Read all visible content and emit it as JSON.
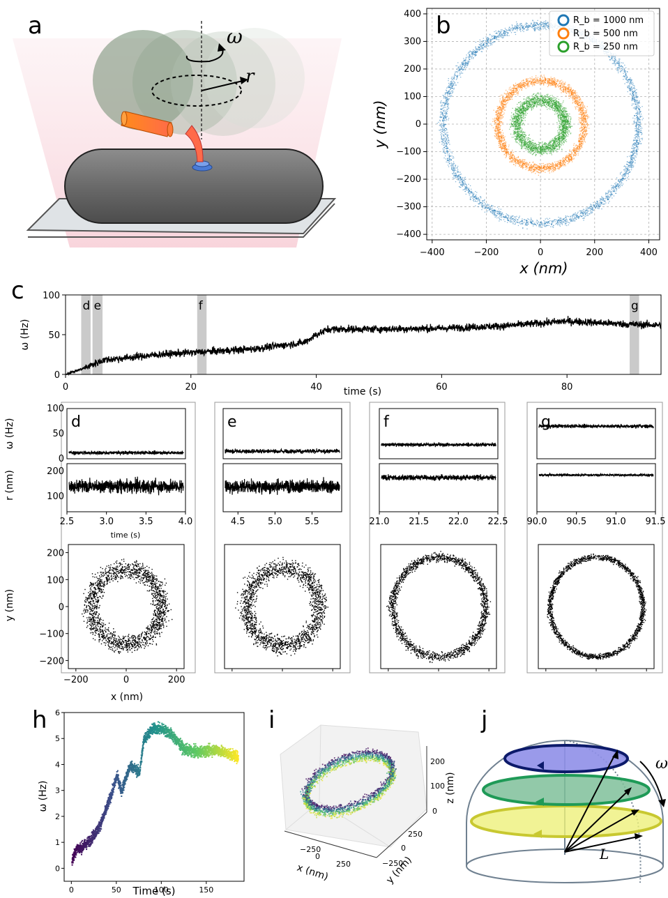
{
  "panel_letters": {
    "a": "a",
    "b": "b",
    "c": "c",
    "d": "d",
    "e": "e",
    "f": "f",
    "g": "g",
    "h": "h",
    "i": "i",
    "j": "j"
  },
  "schematic_a": {
    "omega_symbol": "ω",
    "r_symbol": "r"
  },
  "schematic_j": {
    "omega_symbol": "ω",
    "L_symbol": "L"
  },
  "chart_data": [
    {
      "id": "b",
      "type": "scatter",
      "xlabel": "x (nm)",
      "ylabel": "y (nm)",
      "xlim": [
        -420,
        440
      ],
      "ylim": [
        -420,
        420
      ],
      "xticks": [
        "−400",
        "−200",
        "0",
        "200",
        "400"
      ],
      "yticks": [
        "400",
        "300",
        "200",
        "100",
        "0",
        "−100",
        "−200",
        "−300",
        "−400"
      ],
      "grid": true,
      "legend_position": "top-right",
      "series": [
        {
          "name": "R_b = 1000 nm",
          "color": "#1f77b4",
          "shape": "ring",
          "center": [
            0,
            0
          ],
          "radius": 360,
          "width": 50
        },
        {
          "name": "R_b = 500 nm",
          "color": "#ff7f0e",
          "shape": "ring",
          "center": [
            0,
            0
          ],
          "radius": 160,
          "width": 50
        },
        {
          "name": "R_b = 250 nm",
          "color": "#2ca02c",
          "shape": "ring",
          "center": [
            0,
            0
          ],
          "radius": 90,
          "width": 70
        }
      ],
      "legend": [
        "R_b = 1000 nm",
        "R_b = 500 nm",
        "R_b = 250 nm"
      ]
    },
    {
      "id": "c",
      "type": "line",
      "xlabel": "time (s)",
      "ylabel": "ω (Hz)",
      "xlim": [
        0,
        95
      ],
      "ylim": [
        0,
        100
      ],
      "xticks": [
        "0",
        "20",
        "40",
        "60",
        "80"
      ],
      "yticks": [
        "100",
        "50",
        "0"
      ],
      "color": "#000000",
      "trend": {
        "x": [
          0,
          3,
          6,
          15,
          21,
          30,
          38,
          40,
          42,
          50,
          60,
          70,
          80,
          90,
          95
        ],
        "y": [
          0,
          8,
          18,
          25,
          28,
          32,
          40,
          50,
          57,
          57,
          58,
          61,
          67,
          63,
          62
        ]
      },
      "noise_amplitude": 8,
      "highlights": [
        {
          "label": "d",
          "x": [
            2.5,
            4.0
          ]
        },
        {
          "label": "e",
          "x": [
            4.3,
            5.9
          ]
        },
        {
          "label": "f",
          "x": [
            21.0,
            22.5
          ]
        },
        {
          "label": "g",
          "x": [
            90.0,
            91.5
          ]
        }
      ]
    },
    {
      "id": "d",
      "type": "line",
      "letter": "d",
      "xlim": [
        2.5,
        4.0
      ],
      "xticks": [
        "2.5",
        "3.0",
        "3.5",
        "4.0"
      ],
      "xlabel": "time (s)",
      "omega": {
        "ylabel": "ω (Hz)",
        "ylim": [
          0,
          100
        ],
        "yticks": [
          "100",
          "50",
          "0"
        ],
        "mean": 12,
        "noise": 6
      },
      "r": {
        "ylabel": "r (nm)",
        "ylim": [
          40,
          230
        ],
        "yticks": [
          "200",
          "100"
        ],
        "mean": 140,
        "noise": 45
      },
      "xy": {
        "xlabel": "x (nm)",
        "ylabel": "y (nm)",
        "lim": [
          -230,
          230
        ],
        "xticks": [
          "−200",
          "0",
          "200"
        ],
        "yticks": [
          "200",
          "100",
          "0",
          "−100",
          "−200"
        ],
        "radius": 140,
        "width": 110
      }
    },
    {
      "id": "e",
      "type": "line",
      "letter": "e",
      "xlim": [
        4.3,
        5.9
      ],
      "xticks": [
        "4.5",
        "5.0",
        "5.5"
      ],
      "omega": {
        "mean": 15,
        "noise": 7
      },
      "r": {
        "mean": 140,
        "noise": 45
      },
      "xy": {
        "radius": 145,
        "width": 110
      }
    },
    {
      "id": "f",
      "type": "line",
      "letter": "f",
      "xlim": [
        21.0,
        22.5
      ],
      "xticks": [
        "21.0",
        "21.5",
        "22.0",
        "22.5"
      ],
      "omega": {
        "mean": 28,
        "noise": 6
      },
      "r": {
        "mean": 175,
        "noise": 18
      },
      "xy": {
        "radius": 185,
        "width": 55
      }
    },
    {
      "id": "g",
      "type": "line",
      "letter": "g",
      "xlim": [
        90.0,
        91.5
      ],
      "xticks": [
        "90.0",
        "90.5",
        "91.0",
        "91.5"
      ],
      "omega": {
        "mean": 65,
        "noise": 6
      },
      "r": {
        "mean": 185,
        "noise": 7
      },
      "xy": {
        "radius": 185,
        "width": 35
      }
    },
    {
      "id": "h",
      "type": "scatter",
      "xlabel": "Time (s)",
      "ylabel": "ω (Hz)",
      "xlim": [
        -8,
        192
      ],
      "ylim": [
        -0.5,
        6
      ],
      "xticks": [
        "0",
        "50",
        "100",
        "150"
      ],
      "yticks": [
        "6",
        "5",
        "4",
        "3",
        "2",
        "1",
        "0"
      ],
      "colormap": "viridis",
      "trend": {
        "x": [
          0,
          5,
          10,
          20,
          30,
          35,
          45,
          50,
          55,
          65,
          75,
          80,
          90,
          100,
          110,
          125,
          140,
          160,
          185
        ],
        "y": [
          0.3,
          0.8,
          0.8,
          1.1,
          1.6,
          2.0,
          3.0,
          3.6,
          3.0,
          4.0,
          3.7,
          5.0,
          5.4,
          5.4,
          5.2,
          4.6,
          4.5,
          4.6,
          4.3
        ]
      }
    },
    {
      "id": "i",
      "type": "scatter",
      "xlabel": "x (nm)",
      "ylabel": "y (nm)",
      "zlabel": "z (nm)",
      "xticks": [
        "−250",
        "0",
        "250"
      ],
      "yticks": [
        "250",
        "0",
        "−250"
      ],
      "zticks": [
        "200",
        "100",
        "0"
      ],
      "colormap": "viridis"
    }
  ]
}
